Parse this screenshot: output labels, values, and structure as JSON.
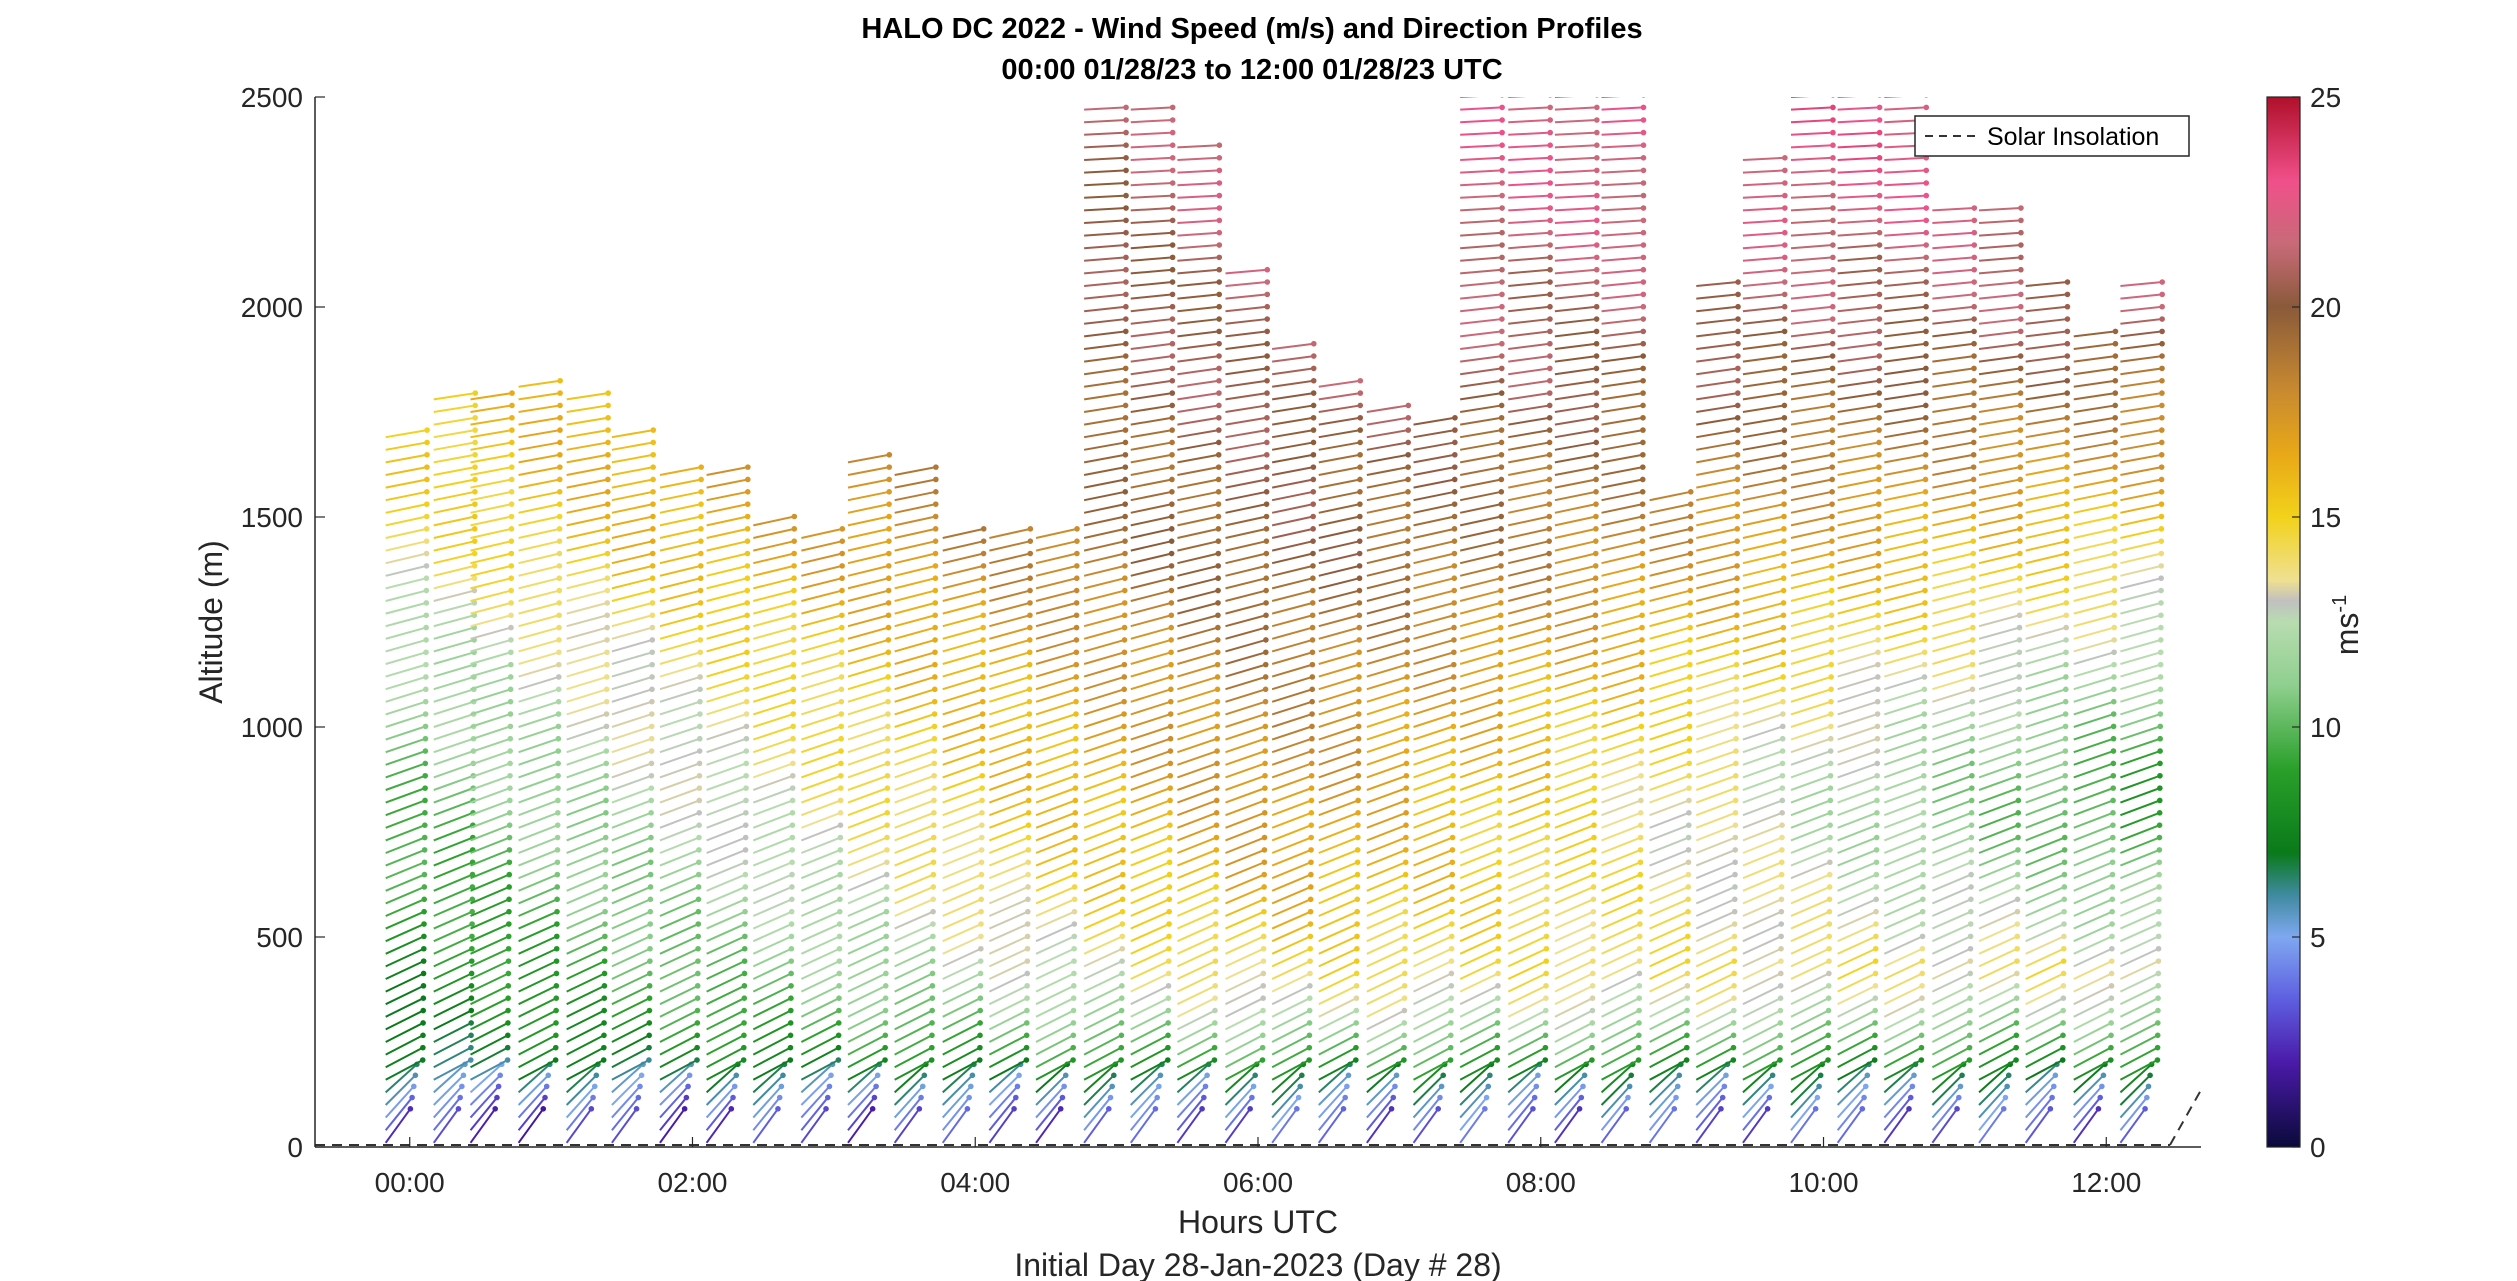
{
  "chart_data": {
    "type": "wind-barb-profile",
    "title": "HALO DC 2022 - Wind Speed (m/s) and Direction Profiles",
    "subtitle": "00:00 01/28/23 to 12:00 01/28/23  UTC",
    "xlabel": "Hours UTC",
    "footer": "Initial Day 28-Jan-2023 (Day # 28)",
    "ylabel": "Altitude (m)",
    "colorbar_label": "ms",
    "colorbar_label_superscript": "-1",
    "xlim_hours": [
      -0.67,
      12.67
    ],
    "ylim": [
      0,
      2500
    ],
    "x_ticks": [
      {
        "hour": 0,
        "label": "00:00"
      },
      {
        "hour": 2,
        "label": "02:00"
      },
      {
        "hour": 4,
        "label": "04:00"
      },
      {
        "hour": 6,
        "label": "06:00"
      },
      {
        "hour": 8,
        "label": "08:00"
      },
      {
        "hour": 10,
        "label": "10:00"
      },
      {
        "hour": 12,
        "label": "12:00"
      }
    ],
    "y_ticks": [
      {
        "value": 0,
        "label": "0"
      },
      {
        "value": 500,
        "label": "500"
      },
      {
        "value": 1000,
        "label": "1000"
      },
      {
        "value": 1500,
        "label": "1500"
      },
      {
        "value": 2000,
        "label": "2000"
      },
      {
        "value": 2500,
        "label": "2500"
      }
    ],
    "colorbar_range": [
      0,
      25
    ],
    "colorbar_ticks": [
      {
        "value": 0,
        "label": "0"
      },
      {
        "value": 5,
        "label": "5"
      },
      {
        "value": 10,
        "label": "10"
      },
      {
        "value": 15,
        "label": "15"
      },
      {
        "value": 20,
        "label": "20"
      },
      {
        "value": 25,
        "label": "25"
      }
    ],
    "colorbar_stops": [
      {
        "value": 0,
        "color": "#0a0a3a"
      },
      {
        "value": 2,
        "color": "#4a1aa8"
      },
      {
        "value": 3.5,
        "color": "#5e5ee0"
      },
      {
        "value": 5,
        "color": "#7fa8f0"
      },
      {
        "value": 6,
        "color": "#3f8aa0"
      },
      {
        "value": 7,
        "color": "#0a7a1a"
      },
      {
        "value": 9,
        "color": "#2aa02a"
      },
      {
        "value": 11,
        "color": "#8fcf8f"
      },
      {
        "value": 12.5,
        "color": "#b8dcb0"
      },
      {
        "value": 13,
        "color": "#c0c0c0"
      },
      {
        "value": 13.5,
        "color": "#efe090"
      },
      {
        "value": 15,
        "color": "#f2d21a"
      },
      {
        "value": 16.5,
        "color": "#e8a818"
      },
      {
        "value": 18,
        "color": "#c88a30"
      },
      {
        "value": 20,
        "color": "#8a5a3a"
      },
      {
        "value": 21.5,
        "color": "#c86a78"
      },
      {
        "value": 23,
        "color": "#f0508a"
      },
      {
        "value": 25,
        "color": "#b0102a"
      }
    ],
    "legend": {
      "label": "Solar Insolation",
      "placement": "top-right",
      "line_style": "dashed"
    },
    "profile_times_hours": [
      -0.17,
      0.17,
      0.43,
      0.77,
      1.11,
      1.43,
      1.77,
      2.1,
      2.43,
      2.77,
      3.1,
      3.43,
      3.77,
      4.1,
      4.43,
      4.77,
      5.1,
      5.43,
      5.77,
      6.1,
      6.43,
      6.77,
      7.1,
      7.43,
      7.77,
      8.1,
      8.43,
      8.77,
      9.1,
      9.43,
      9.77,
      10.1,
      10.43,
      10.77,
      11.1,
      11.43,
      11.77,
      12.1
    ],
    "profile_top_altitudes_m": [
      1700,
      1780,
      1800,
      1830,
      1780,
      1700,
      1620,
      1610,
      1500,
      1460,
      1640,
      1620,
      1460,
      1460,
      1460,
      2470,
      2480,
      2400,
      2100,
      1920,
      1830,
      1760,
      1740,
      2500,
      2500,
      2500,
      2500,
      1540,
      2050,
      2370,
      2500,
      2500,
      2500,
      2250,
      2230,
      2050,
      1950,
      2060
    ],
    "altitude_speed_profile": {
      "altitude_m": [
        0,
        100,
        200,
        300,
        400,
        500,
        600,
        700,
        800,
        900,
        1000,
        1100,
        1200,
        1300,
        1400,
        1500,
        1600,
        1700,
        1800,
        1900,
        2000,
        2100,
        2200,
        2300,
        2400,
        2500
      ],
      "early_speed_ms": [
        2,
        5,
        7,
        7.5,
        8,
        8.5,
        9,
        9.5,
        10,
        10.5,
        11,
        11.5,
        12,
        13,
        14,
        14.5,
        15,
        15,
        15,
        15,
        15,
        15,
        15,
        15,
        15,
        15
      ],
      "mid_speed_ms": [
        3,
        6,
        10,
        13,
        14.5,
        15.5,
        16.5,
        17,
        17.5,
        18,
        18,
        18.5,
        19,
        19.5,
        20,
        20,
        20,
        20.5,
        21,
        21,
        21,
        21.5,
        22,
        22,
        22,
        22
      ],
      "late_speed_ms": [
        3,
        6,
        9,
        12,
        14,
        12,
        11,
        9.5,
        9,
        9.5,
        10.5,
        11.5,
        12.5,
        13.5,
        14.5,
        15.5,
        17,
        18,
        19,
        20,
        21,
        21,
        22,
        22.5,
        23,
        23
      ]
    }
  }
}
